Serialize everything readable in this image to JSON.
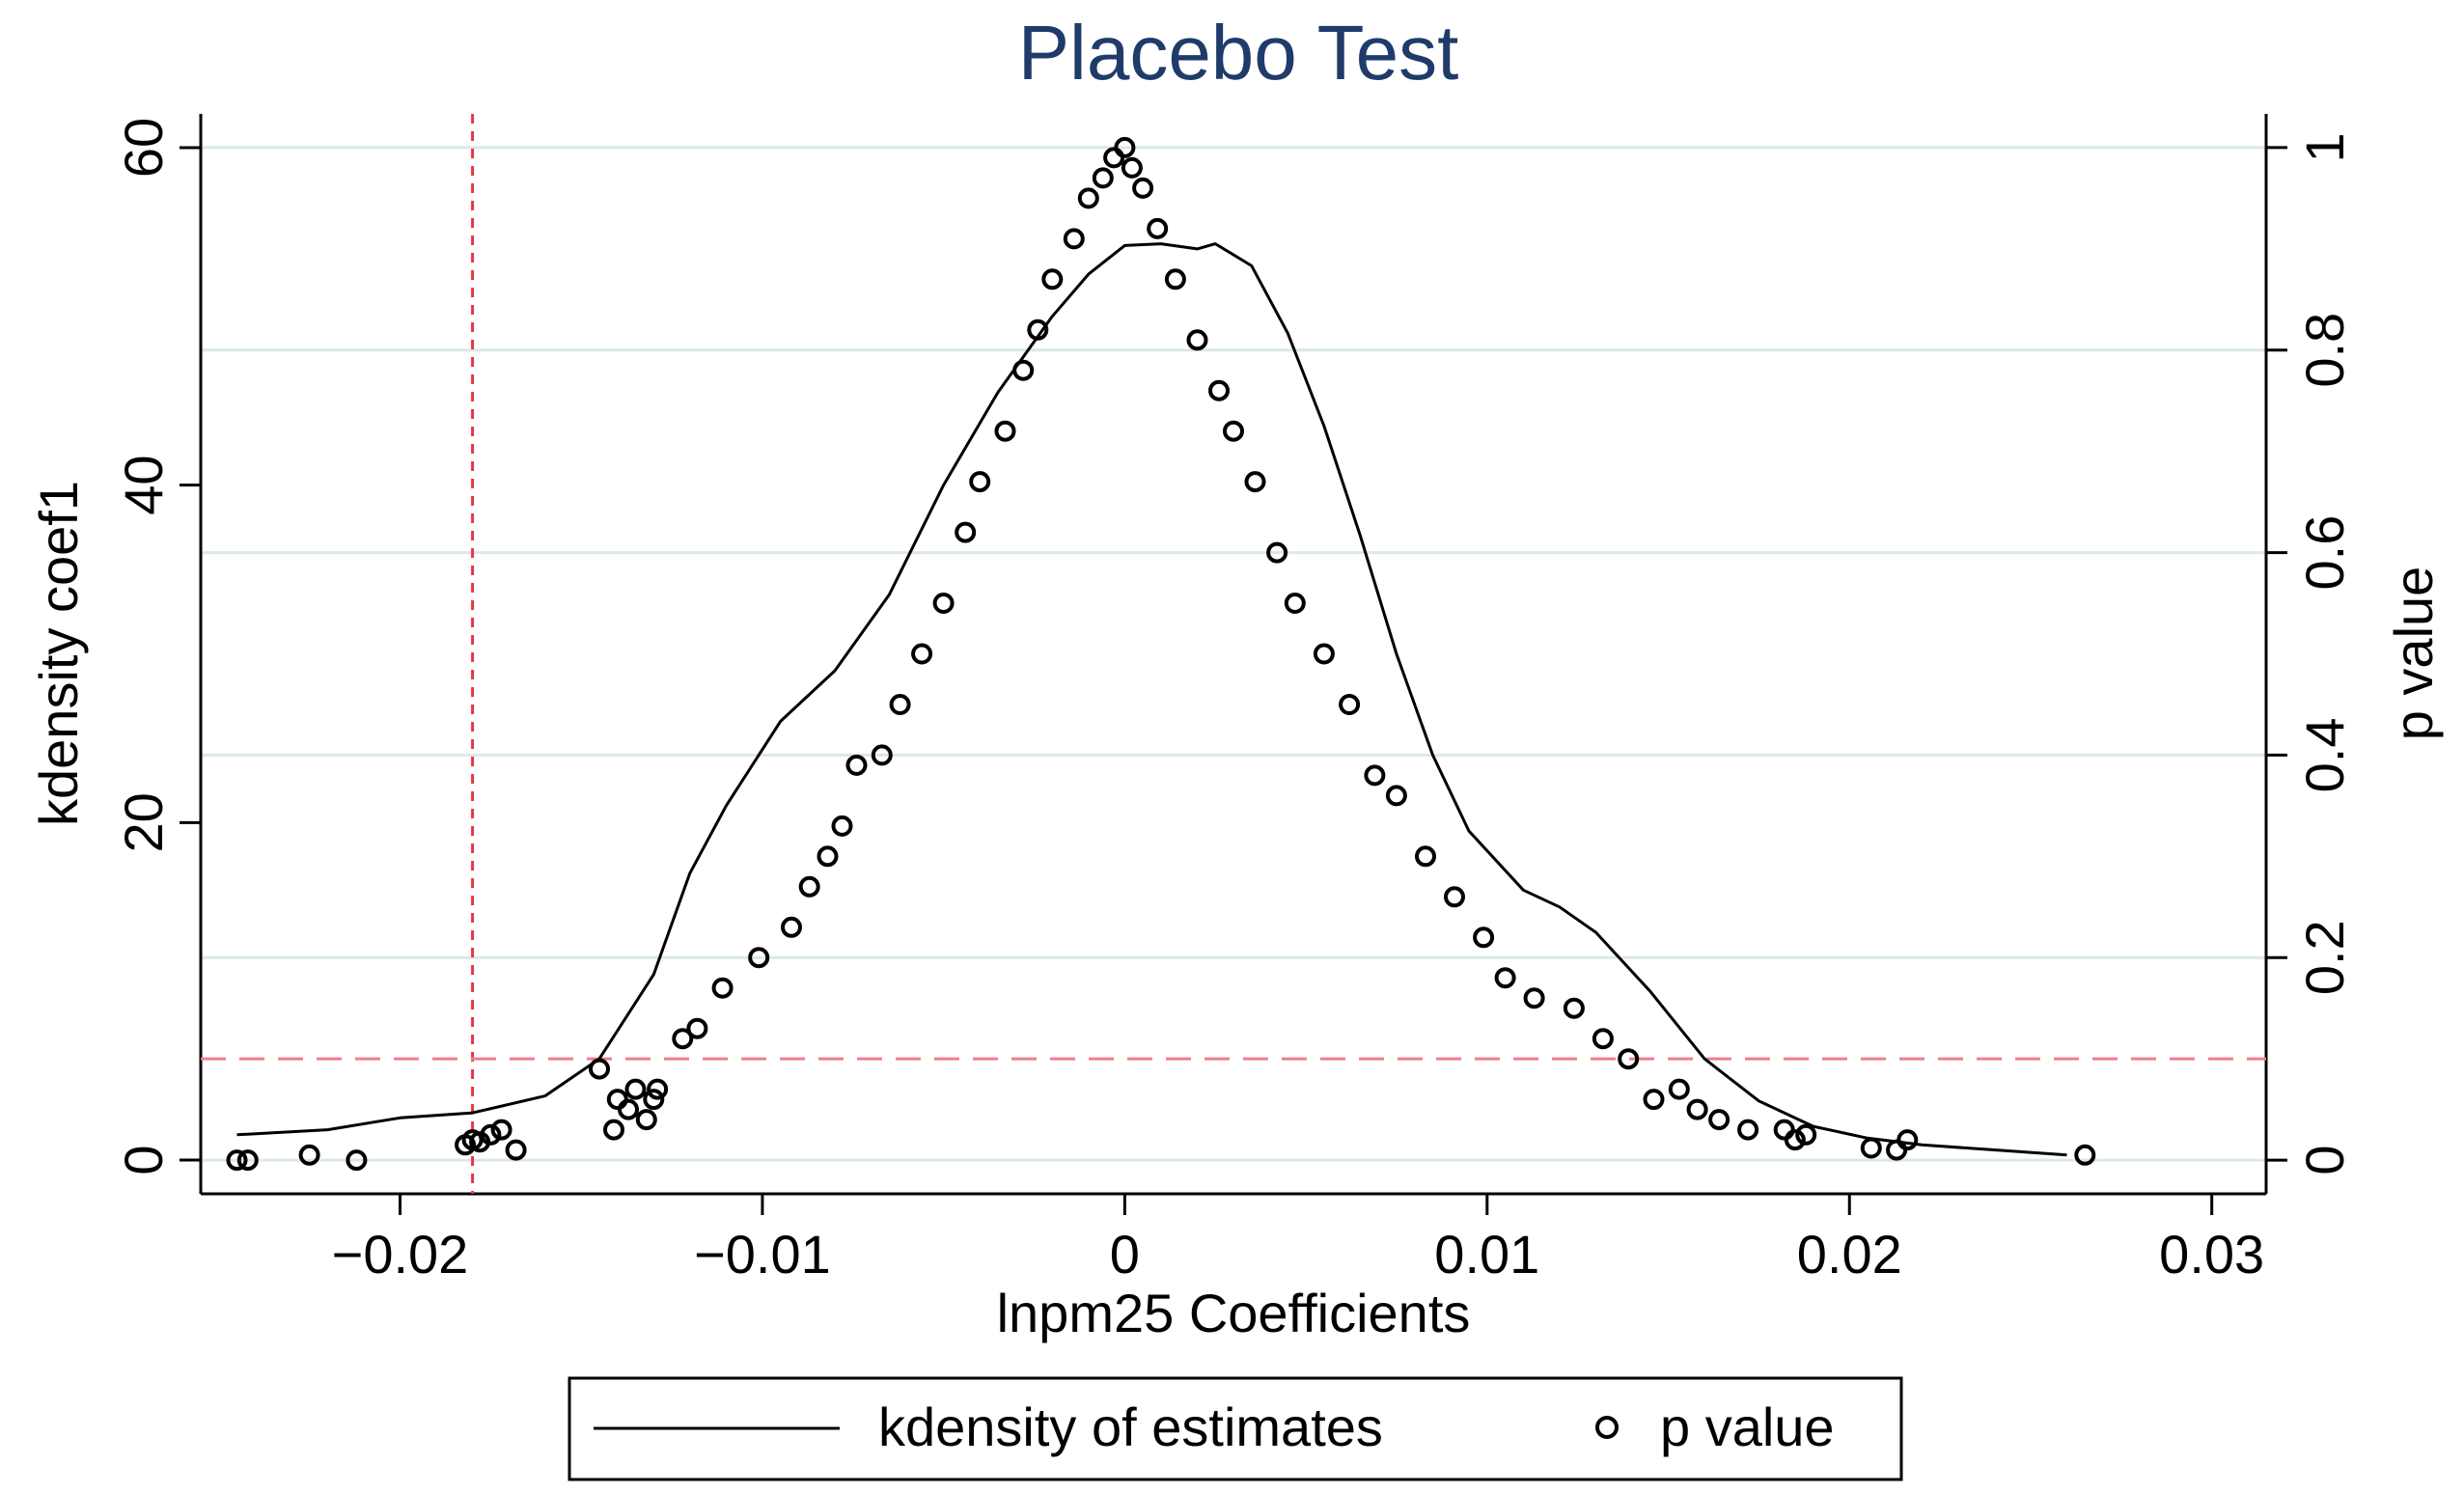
{
  "chart_data": {
    "type": "line+scatter",
    "title": "Placebo Test",
    "xlabel": "lnpm25 Coefficients",
    "ylabel": "kdensity coef1",
    "y2label": "p value",
    "xlim": [
      -0.0255,
      0.0315
    ],
    "ylim": [
      -2,
      62
    ],
    "y2lim": [
      -0.0333,
      1.0333
    ],
    "xticks": [
      -0.02,
      -0.01,
      0,
      0.01,
      0.02,
      0.03
    ],
    "xtick_labels": [
      "−0.02",
      "−0.01",
      "0",
      "0.01",
      "0.02",
      "0.03"
    ],
    "yticks": [
      0,
      20,
      40,
      60
    ],
    "ytick_labels": [
      "0",
      "20",
      "40",
      "60"
    ],
    "y2ticks": [
      0,
      0.2,
      0.4,
      0.6,
      0.8,
      1
    ],
    "y2tick_labels": [
      "0",
      "0.2",
      "0.4",
      "0.6",
      "0.8",
      "1"
    ],
    "gridlines_y2": [
      0,
      0.2,
      0.4,
      0.6,
      0.8,
      1
    ],
    "reference_lines": {
      "vertical_x": -0.018,
      "horizontal_y2": 0.1,
      "color": "#e8344a"
    },
    "kdensity": {
      "name": "kdensity of estimates",
      "x": [
        -0.0245,
        -0.022,
        -0.02,
        -0.018,
        -0.016,
        -0.0145,
        -0.013,
        -0.012,
        -0.011,
        -0.0095,
        -0.008,
        -0.0065,
        -0.005,
        -0.0035,
        -0.002,
        -0.001,
        0,
        0.001,
        0.002,
        0.0025,
        0.0035,
        0.0045,
        0.0055,
        0.0065,
        0.0075,
        0.0085,
        0.0095,
        0.011,
        0.012,
        0.013,
        0.0145,
        0.016,
        0.0175,
        0.019,
        0.0205,
        0.022,
        0.024,
        0.026
      ],
      "y": [
        1.5,
        1.8,
        2.5,
        2.8,
        3.8,
        6.0,
        11.0,
        17.0,
        21.0,
        26.0,
        29.0,
        33.5,
        40.0,
        45.5,
        50.0,
        52.5,
        54.2,
        54.3,
        54.0,
        54.3,
        53.0,
        49.0,
        43.5,
        37.0,
        30.0,
        24.0,
        19.5,
        16.0,
        15.0,
        13.5,
        10.0,
        6.0,
        3.5,
        2.0,
        1.3,
        0.9,
        0.6,
        0.3
      ]
    },
    "pvalues": {
      "name": "p value",
      "x": [
        -0.0245,
        -0.0242,
        -0.0225,
        -0.0212,
        -0.0182,
        -0.018,
        -0.0178,
        -0.0175,
        -0.0172,
        -0.0168,
        -0.0145,
        -0.0141,
        -0.014,
        -0.0137,
        -0.0135,
        -0.0132,
        -0.013,
        -0.0129,
        -0.0122,
        -0.0118,
        -0.0111,
        -0.0101,
        -0.0092,
        -0.0087,
        -0.0082,
        -0.0078,
        -0.0074,
        -0.0067,
        -0.0062,
        -0.0056,
        -0.005,
        -0.0044,
        -0.004,
        -0.0033,
        -0.0028,
        -0.0024,
        -0.002,
        -0.0014,
        -0.001,
        -0.0006,
        -0.0003,
        0,
        0.0002,
        0.0005,
        0.0009,
        0.0014,
        0.002,
        0.0026,
        0.003,
        0.0036,
        0.0042,
        0.0047,
        0.0055,
        0.0062,
        0.0069,
        0.0075,
        0.0083,
        0.0091,
        0.0099,
        0.0105,
        0.0113,
        0.0124,
        0.0132,
        0.0139,
        0.0146,
        0.0153,
        0.0158,
        0.0164,
        0.0172,
        0.0182,
        0.0185,
        0.0188,
        0.0206,
        0.0213,
        0.0216,
        0.0265
      ],
      "y": [
        0.0,
        0.0,
        0.005,
        0.0,
        0.015,
        0.02,
        0.018,
        0.025,
        0.03,
        0.01,
        0.09,
        0.03,
        0.06,
        0.05,
        0.07,
        0.04,
        0.06,
        0.07,
        0.12,
        0.13,
        0.17,
        0.2,
        0.23,
        0.27,
        0.3,
        0.33,
        0.39,
        0.4,
        0.45,
        0.5,
        0.55,
        0.62,
        0.67,
        0.72,
        0.78,
        0.82,
        0.87,
        0.91,
        0.95,
        0.97,
        0.99,
        1.0,
        0.98,
        0.96,
        0.92,
        0.87,
        0.81,
        0.76,
        0.72,
        0.67,
        0.6,
        0.55,
        0.5,
        0.45,
        0.38,
        0.36,
        0.3,
        0.26,
        0.22,
        0.18,
        0.16,
        0.15,
        0.12,
        0.1,
        0.06,
        0.07,
        0.05,
        0.04,
        0.03,
        0.03,
        0.02,
        0.025,
        0.012,
        0.01,
        0.02,
        0.005
      ]
    },
    "legend": {
      "position": "bottom",
      "entries": [
        "kdensity of estimates",
        "p value"
      ]
    }
  },
  "colors": {
    "title": "#1f3b6a",
    "series": "#000000",
    "gridline": "#dbe7ec",
    "reference": "#e8344a"
  }
}
